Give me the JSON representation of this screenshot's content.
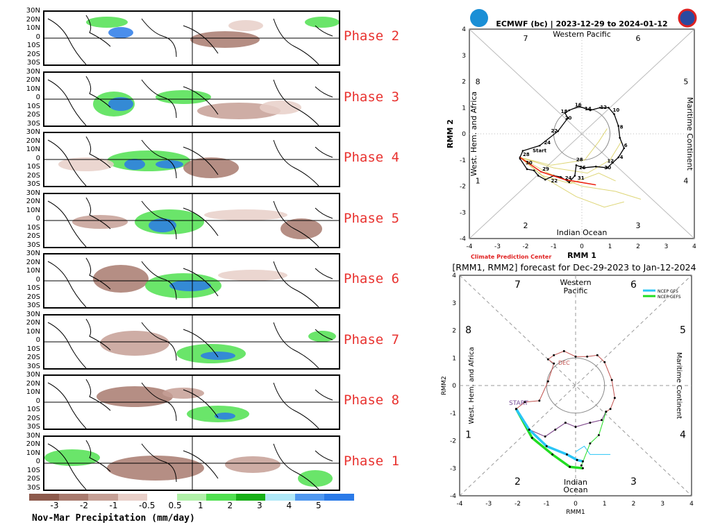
{
  "left": {
    "lat_labels": [
      "30N",
      "20N",
      "10N",
      "0",
      "10S",
      "20S",
      "30S"
    ],
    "phases": [
      "Phase 2",
      "Phase 3",
      "Phase 4",
      "Phase 5",
      "Phase 6",
      "Phase 7",
      "Phase 8",
      "Phase 1"
    ],
    "colorbar": {
      "colors": [
        "#8d5a4c",
        "#a87a6e",
        "#c59f95",
        "#e8cfc8",
        "#ffffff",
        "#b0f0a8",
        "#50e050",
        "#18b018",
        "#b0e8f8",
        "#5098f0",
        "#2a7ae8"
      ],
      "tick_labels": [
        "-3",
        "-2",
        "-1",
        "-0.5",
        "0.5",
        "1",
        "2",
        "3",
        "4",
        "5"
      ],
      "title": "Nov-Mar Precipitation (mm/day)"
    }
  },
  "chart_data": [
    {
      "type": "line",
      "title": "ECMWF (bc) | 2023-12-29 to 2024-01-12",
      "xlabel": "RMM 1",
      "ylabel": "RMM 2",
      "xlim": [
        -4,
        4
      ],
      "ylim": [
        -4,
        4
      ],
      "ticks": [
        "-4",
        "-3",
        "-2",
        "-1",
        "0",
        "1",
        "2",
        "3",
        "4"
      ],
      "region_labels": {
        "top": "Western Pacific",
        "bottom": "Indian Ocean",
        "left": "West. Hem. and Africa",
        "right": "Maritime Continent"
      },
      "phase_numbers": {
        "p1": "1",
        "p2": "2",
        "p3": "3",
        "p4": "4",
        "p5": "5",
        "p6": "6",
        "p7": "7",
        "p8": "8"
      },
      "credit": "Climate Prediction Center",
      "observed": [
        [
          -2.2,
          -0.95
        ],
        [
          -1.95,
          -1.35
        ],
        [
          -1.7,
          -1.4
        ],
        [
          -1.55,
          -1.6
        ],
        [
          -1.3,
          -1.75
        ],
        [
          -1.0,
          -1.6
        ],
        [
          -0.75,
          -1.65
        ],
        [
          -0.45,
          -1.85
        ],
        [
          -0.25,
          -1.6
        ],
        [
          -0.2,
          -1.2
        ],
        [
          0.05,
          -1.3
        ],
        [
          0.5,
          -1.25
        ],
        [
          0.9,
          -1.3
        ],
        [
          1.1,
          -1.1
        ],
        [
          1.3,
          -0.9
        ],
        [
          1.5,
          -0.55
        ],
        [
          1.35,
          -0.15
        ],
        [
          1.3,
          0.3
        ],
        [
          1.15,
          0.75
        ],
        [
          0.95,
          1.0
        ],
        [
          0.65,
          1.0
        ],
        [
          0.3,
          0.9
        ],
        [
          -0.1,
          1.05
        ],
        [
          -0.45,
          0.9
        ],
        [
          -0.6,
          0.8
        ],
        [
          -0.5,
          0.6
        ],
        [
          -0.85,
          0.1
        ],
        [
          -1.5,
          -0.45
        ],
        [
          -2.1,
          -0.65
        ],
        [
          -2.2,
          -0.9
        ]
      ],
      "observed_labels": [
        [
          "28",
          -2.1,
          -0.85
        ],
        [
          "29",
          -1.4,
          -1.4
        ],
        [
          "22",
          -1.1,
          -1.85
        ],
        [
          "24",
          -0.6,
          -1.75
        ],
        [
          "31",
          -0.15,
          -1.75
        ],
        [
          "26",
          -0.1,
          -1.35
        ],
        [
          "28",
          -0.2,
          -1.05
        ],
        [
          "12",
          0.9,
          -1.1
        ],
        [
          "30",
          0.8,
          -1.35
        ],
        [
          "4",
          1.35,
          -0.95
        ],
        [
          "6",
          1.5,
          -0.5
        ],
        [
          "8",
          1.35,
          0.2
        ],
        [
          "10",
          1.1,
          0.85
        ],
        [
          "12",
          0.65,
          0.95
        ],
        [
          "14",
          0.1,
          0.9
        ],
        [
          "16",
          -0.25,
          1.05
        ],
        [
          "18",
          -0.75,
          0.8
        ],
        [
          "20",
          -0.6,
          0.65
        ],
        [
          "22",
          -1.1,
          0.05
        ],
        [
          "24",
          -1.35,
          -0.4
        ],
        [
          "Start",
          -1.75,
          -0.6
        ],
        [
          "30",
          -2.0,
          -0.95
        ]
      ],
      "forecast_mean": [
        [
          -2.2,
          -0.9
        ],
        [
          -1.45,
          -1.45
        ],
        [
          -0.6,
          -1.75
        ],
        [
          0.5,
          -1.95
        ]
      ],
      "ensemble": [
        [
          [
            -2.2,
            -0.9
          ],
          [
            -1.2,
            -1.5
          ],
          [
            0,
            -2.0
          ],
          [
            1.2,
            -2.2
          ],
          [
            2.1,
            -2.5
          ]
        ],
        [
          [
            -2.2,
            -0.9
          ],
          [
            -1.0,
            -1.3
          ],
          [
            0.2,
            -1.5
          ],
          [
            1.0,
            -1.0
          ],
          [
            1.4,
            -0.3
          ]
        ],
        [
          [
            -2.2,
            -0.9
          ],
          [
            -1.3,
            -1.7
          ],
          [
            -0.2,
            -2.4
          ],
          [
            0.8,
            -2.8
          ],
          [
            1.5,
            -2.6
          ]
        ],
        [
          [
            -2.2,
            -0.9
          ],
          [
            -1.1,
            -1.2
          ],
          [
            0.1,
            -1.0
          ],
          [
            0.6,
            -0.3
          ],
          [
            0.9,
            0.2
          ]
        ],
        [
          [
            -2.2,
            -0.9
          ],
          [
            -1.4,
            -1.6
          ],
          [
            -0.4,
            -1.9
          ],
          [
            0.6,
            -1.5
          ],
          [
            1.2,
            -1.8
          ]
        ]
      ]
    },
    {
      "type": "line",
      "title": "[RMM1, RMM2] forecast for Dec-29-2023 to Jan-12-2024",
      "xlabel": "RMM1",
      "ylabel": "RMM2",
      "xlim": [
        -4,
        4
      ],
      "ylim": [
        -4,
        4
      ],
      "ticks": [
        "-4",
        "-3",
        "-2",
        "-1",
        "0",
        "1",
        "2",
        "3",
        "4"
      ],
      "region_labels": {
        "top1": "Western",
        "top2": "Pacific",
        "bottom1": "Indian",
        "bottom2": "Ocean",
        "left": "West. Hem. and Africa",
        "right": "Maritime Continent"
      },
      "phase_numbers": {
        "p1": "1",
        "p2": "2",
        "p3": "3",
        "p4": "4",
        "p5": "5",
        "p6": "6",
        "p7": "7",
        "p8": "8"
      },
      "legend": [
        {
          "name": "NCEP GFS",
          "color": "#29c5f6"
        },
        {
          "name": "NCEP GEFS",
          "color": "#22dd22"
        }
      ],
      "markers": {
        "start": "START",
        "dec": "DEC"
      },
      "observed": [
        [
          -2.05,
          -0.85
        ],
        [
          -1.75,
          -0.6
        ],
        [
          -1.25,
          -0.55
        ],
        [
          -0.95,
          0.15
        ],
        [
          -0.75,
          0.8
        ],
        [
          -0.95,
          0.95
        ],
        [
          -0.75,
          1.1
        ],
        [
          -0.4,
          1.25
        ],
        [
          0,
          1.05
        ],
        [
          0.4,
          1.05
        ],
        [
          0.75,
          1.1
        ],
        [
          1.0,
          0.85
        ],
        [
          1.25,
          0.2
        ],
        [
          1.35,
          -0.45
        ],
        [
          1.2,
          -0.85
        ],
        [
          1.05,
          -0.95
        ],
        [
          0.9,
          -1.25
        ],
        [
          0.5,
          -1.35
        ],
        [
          0.0,
          -1.5
        ],
        [
          -0.35,
          -1.35
        ],
        [
          -0.7,
          -1.6
        ],
        [
          -1.05,
          -1.85
        ],
        [
          -1.6,
          -1.6
        ]
      ],
      "gfs": [
        [
          -2.05,
          -0.85
        ],
        [
          -1.6,
          -1.6
        ],
        [
          -1.0,
          -2.2
        ],
        [
          -0.3,
          -2.5
        ],
        [
          0.05,
          -2.7
        ],
        [
          0.25,
          -2.75
        ]
      ],
      "gefs": [
        [
          -2.05,
          -0.85
        ],
        [
          -1.5,
          -1.9
        ],
        [
          -0.8,
          -2.5
        ],
        [
          -0.2,
          -2.95
        ],
        [
          0.25,
          -3.0
        ]
      ],
      "gfs_thin": [
        [
          0.0,
          -2.4
        ],
        [
          0.3,
          -2.2
        ],
        [
          0.5,
          -2.5
        ],
        [
          1.2,
          -2.5
        ]
      ],
      "gefs_thin": [
        [
          1.05,
          -0.95
        ],
        [
          0.8,
          -1.8
        ],
        [
          0.5,
          -2.1
        ],
        [
          0.2,
          -2.9
        ]
      ]
    }
  ]
}
